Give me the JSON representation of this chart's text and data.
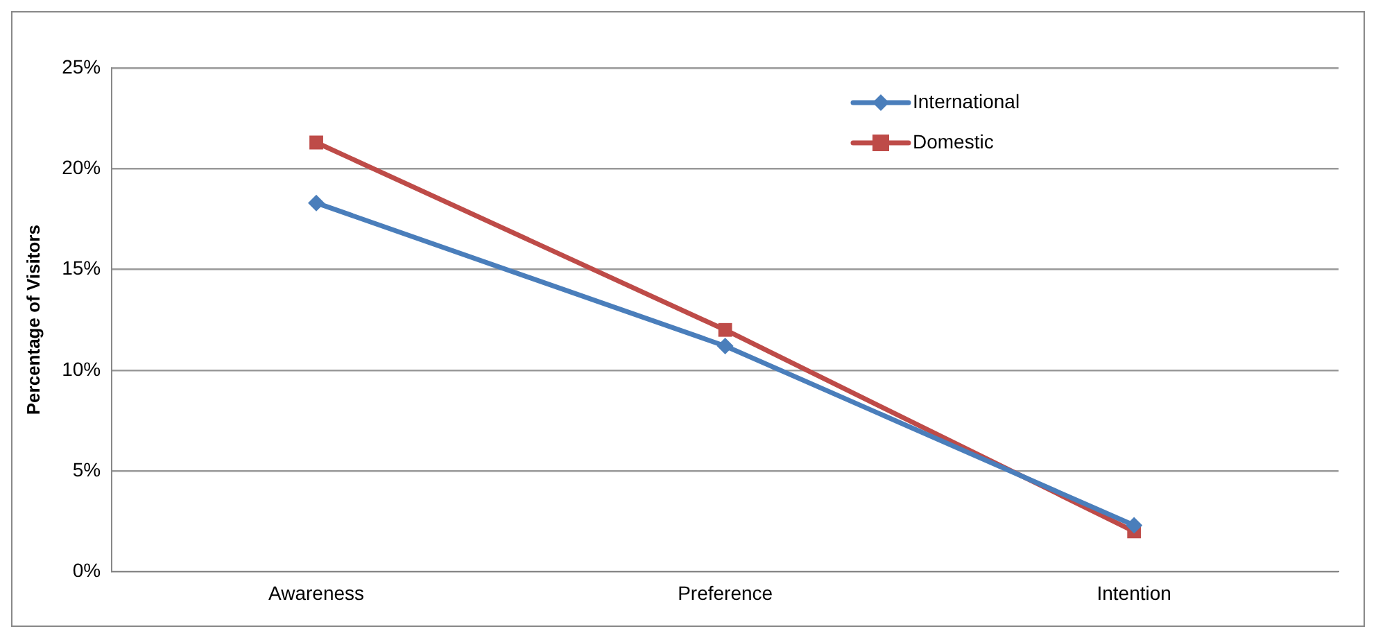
{
  "chart_data": {
    "type": "line",
    "ylabel": "Percentage of Visitors",
    "categories": [
      "Awareness",
      "Preference",
      "Intention"
    ],
    "series": [
      {
        "name": "International",
        "color": "#4a7ebb",
        "values": [
          18.3,
          11.2,
          2.3
        ],
        "marker": "diamond"
      },
      {
        "name": "Domestic",
        "color": "#be4b48",
        "values": [
          21.3,
          12.0,
          2.0
        ],
        "marker": "square"
      }
    ],
    "ylim": [
      0,
      25
    ],
    "yticks": [
      {
        "value": 0,
        "label": "0%"
      },
      {
        "value": 5,
        "label": "5%"
      },
      {
        "value": 10,
        "label": "10%"
      },
      {
        "value": 15,
        "label": "15%"
      },
      {
        "value": 20,
        "label": "20%"
      },
      {
        "value": 25,
        "label": "25%"
      }
    ],
    "grid": "y",
    "legend": "top right",
    "line_style": "solid"
  }
}
